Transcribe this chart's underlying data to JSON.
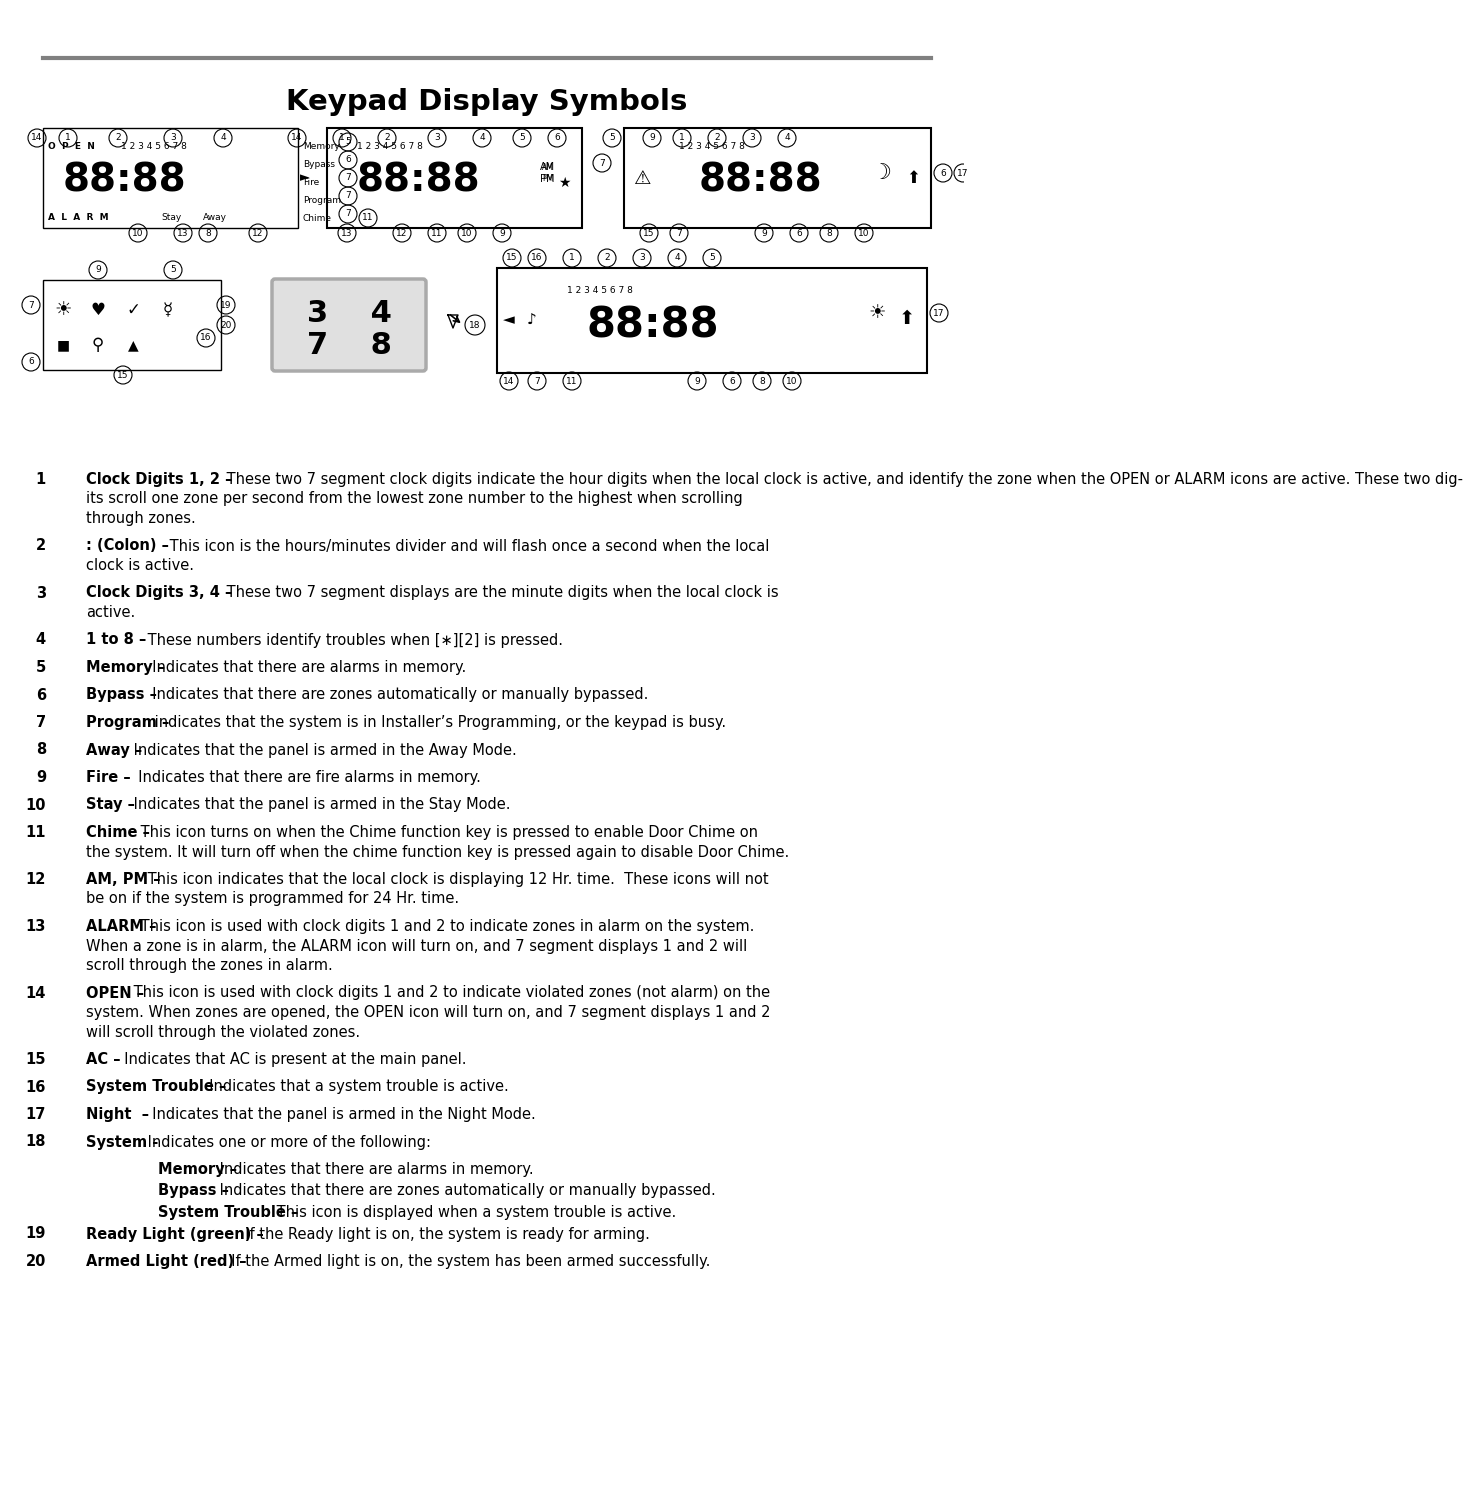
{
  "title": "Keypad Display Symbols",
  "bg": "#ffffff",
  "rule_color": "#808080",
  "items": [
    {
      "num": "1",
      "bold": "Clock Digits 1, 2",
      "dash": "–",
      "text": "These two 7 segment clock digits indicate the hour digits when the local clock is active, and identify the zone when the OPEN or ALARM icons are active. These two dig-\nits scroll one zone per second from the lowest zone number to the highest when scrolling\nthrough zones."
    },
    {
      "num": "2",
      "bold": ": (Colon)",
      "dash": "–",
      "text": "This icon is the hours/minutes divider and will flash once a second when the local\nclock is active."
    },
    {
      "num": "3",
      "bold": "Clock Digits 3, 4",
      "dash": "–",
      "text": "These two 7 segment displays are the minute digits when the local clock is\nactive."
    },
    {
      "num": "4",
      "bold": "1 to 8",
      "dash": "–",
      "text": "These numbers identify troubles when [∗][2] is pressed."
    },
    {
      "num": "5",
      "bold": "Memory",
      "dash": "–",
      "text": " Indicates that there are alarms in memory."
    },
    {
      "num": "6",
      "bold": "Bypass",
      "dash": "–",
      "text": " Indicates that there are zones automatically or manually bypassed."
    },
    {
      "num": "7",
      "bold": "Program",
      "dash": "–",
      "text": "indicates that the system is in Installer’s Programming, or the keypad is busy."
    },
    {
      "num": "8",
      "bold": "Away",
      "dash": "–",
      "text": "Indicates that the panel is armed in the Away Mode."
    },
    {
      "num": "9",
      "bold": "Fire",
      "dash": "–",
      "text": " Indicates that there are fire alarms in memory."
    },
    {
      "num": "10",
      "bold": "Stay",
      "dash": "–",
      "text": "Indicates that the panel is armed in the Stay Mode."
    },
    {
      "num": "11",
      "bold": "Chime",
      "dash": "–",
      "text": "This icon turns on when the Chime function key is pressed to enable Door Chime on\nthe system. It will turn off when the chime function key is pressed again to disable Door Chime."
    },
    {
      "num": "12",
      "bold": "AM, PM",
      "dash": "–",
      "text": "This icon indicates that the local clock is displaying 12 Hr. time.  These icons will not\nbe on if the system is programmed for 24 Hr. time."
    },
    {
      "num": "13",
      "bold": "ALARM",
      "dash": "–",
      "text": "This icon is used with clock digits 1 and 2 to indicate zones in alarm on the system.\nWhen a zone is in alarm, the ALARM icon will turn on, and 7 segment displays 1 and 2 will\nscroll through the zones in alarm."
    },
    {
      "num": "14",
      "bold": "OPEN",
      "dash": "–",
      "text": "This icon is used with clock digits 1 and 2 to indicate violated zones (not alarm) on the\nsystem. When zones are opened, the OPEN icon will turn on, and 7 segment displays 1 and 2\nwill scroll through the violated zones."
    },
    {
      "num": "15",
      "bold": "AC",
      "dash": "–",
      "text": " Indicates that AC is present at the main panel."
    },
    {
      "num": "16",
      "bold": "System Trouble",
      "dash": "–",
      "text": " Indicates that a system trouble is active."
    },
    {
      "num": "17",
      "bold": "Night",
      "dash": " –",
      "text": " Indicates that the panel is armed in the Night Mode."
    },
    {
      "num": "18",
      "bold": "System -",
      "dash": "",
      "text": "Indicates one or more of the following:",
      "sub": [
        {
          "bold": "Memory",
          "dash": "–",
          "text": " Indicates that there are alarms in memory."
        },
        {
          "bold": "Bypass",
          "dash": "–",
          "text": " Indicates that there are zones automatically or manually bypassed."
        },
        {
          "bold": "System Trouble",
          "dash": "–",
          "text": " This icon is displayed when a system trouble is active."
        }
      ]
    },
    {
      "num": "19",
      "bold": "Ready Light (green)",
      "dash": "–",
      "text": " If the Ready light is on, the system is ready for arming."
    },
    {
      "num": "20",
      "bold": "Armed Light (red)",
      "dash": "–",
      "text": " If the Armed light is on, the system has been armed successfully."
    }
  ]
}
